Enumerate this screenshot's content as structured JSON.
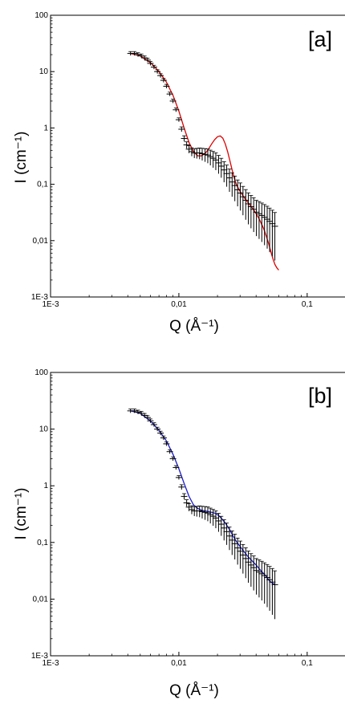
{
  "chart_data": [
    {
      "type": "scatter",
      "panel_label": "[a]",
      "xlabel": "Q (Å⁻¹)",
      "ylabel": "I (cm⁻¹)",
      "xscale": "log",
      "yscale": "log",
      "xlim": [
        0.001,
        0.2
      ],
      "ylim": [
        0.001,
        100
      ],
      "xticks": [
        0.001,
        0.01,
        0.1
      ],
      "xtick_labels": [
        "1E-3",
        "0,01",
        "0,1"
      ],
      "yticks": [
        0.001,
        0.01,
        0.1,
        1,
        10,
        100
      ],
      "ytick_labels": [
        "1E-3",
        "0,01",
        "0,1",
        "1",
        "10",
        "100"
      ],
      "grid": false,
      "series": [
        {
          "kind": "data",
          "style": "error-bar markers",
          "color": "#000000",
          "x": [
            0.0042,
            0.0045,
            0.0048,
            0.0051,
            0.0054,
            0.0057,
            0.006,
            0.0064,
            0.0068,
            0.0072,
            0.0076,
            0.008,
            0.0085,
            0.009,
            0.0095,
            0.01,
            0.0105,
            0.011,
            0.0115,
            0.012,
            0.0126,
            0.0132,
            0.0138,
            0.0145,
            0.0152,
            0.016,
            0.0168,
            0.0176,
            0.0185,
            0.0194,
            0.0204,
            0.0214,
            0.0225,
            0.0236,
            0.0248,
            0.026,
            0.0273,
            0.0287,
            0.0301,
            0.0316,
            0.0332,
            0.0348,
            0.0365,
            0.0383,
            0.0402,
            0.0422,
            0.0443,
            0.0465,
            0.0488,
            0.051,
            0.0535,
            0.056
          ],
          "y": [
            21,
            21,
            20,
            19,
            17.5,
            16,
            14,
            12,
            10,
            8.5,
            7,
            5.5,
            4,
            3,
            2.1,
            1.4,
            0.95,
            0.65,
            0.5,
            0.42,
            0.38,
            0.36,
            0.36,
            0.36,
            0.35,
            0.34,
            0.33,
            0.31,
            0.29,
            0.27,
            0.24,
            0.21,
            0.18,
            0.155,
            0.13,
            0.11,
            0.095,
            0.08,
            0.07,
            0.06,
            0.052,
            0.045,
            0.04,
            0.036,
            0.032,
            0.03,
            0.028,
            0.026,
            0.024,
            0.022,
            0.02,
            0.018
          ]
        },
        {
          "kind": "fit",
          "color": "#dd0000",
          "x": [
            0.0042,
            0.005,
            0.006,
            0.007,
            0.008,
            0.009,
            0.01,
            0.011,
            0.012,
            0.013,
            0.014,
            0.015,
            0.016,
            0.017,
            0.018,
            0.019,
            0.02,
            0.021,
            0.022,
            0.023,
            0.024,
            0.025,
            0.026,
            0.027,
            0.028,
            0.03,
            0.032,
            0.034,
            0.036,
            0.038,
            0.04,
            0.042,
            0.044,
            0.046,
            0.048,
            0.05,
            0.052,
            0.054,
            0.056,
            0.058,
            0.06
          ],
          "y": [
            21,
            19,
            14.5,
            10,
            6.5,
            3.8,
            2,
            1,
            0.55,
            0.38,
            0.32,
            0.32,
            0.35,
            0.42,
            0.52,
            0.62,
            0.7,
            0.72,
            0.66,
            0.52,
            0.38,
            0.26,
            0.18,
            0.13,
            0.1,
            0.075,
            0.06,
            0.05,
            0.042,
            0.036,
            0.03,
            0.025,
            0.02,
            0.016,
            0.012,
            0.009,
            0.0065,
            0.0048,
            0.0038,
            0.0033,
            0.003
          ]
        }
      ]
    },
    {
      "type": "scatter",
      "panel_label": "[b]",
      "xlabel": "Q (Å⁻¹)",
      "ylabel": "I (cm⁻¹)",
      "xscale": "log",
      "yscale": "log",
      "xlim": [
        0.001,
        0.2
      ],
      "ylim": [
        0.001,
        100
      ],
      "xticks": [
        0.001,
        0.01,
        0.1
      ],
      "xtick_labels": [
        "1E-3",
        "0,01",
        "0,1"
      ],
      "yticks": [
        0.001,
        0.01,
        0.1,
        1,
        10,
        100
      ],
      "ytick_labels": [
        "1E-3",
        "0,01",
        "0,1",
        "1",
        "10",
        "100"
      ],
      "grid": false,
      "series": [
        {
          "kind": "data",
          "style": "error-bar markers",
          "color": "#000000",
          "x": [
            0.0042,
            0.0045,
            0.0048,
            0.0051,
            0.0054,
            0.0057,
            0.006,
            0.0064,
            0.0068,
            0.0072,
            0.0076,
            0.008,
            0.0085,
            0.009,
            0.0095,
            0.01,
            0.0105,
            0.011,
            0.0115,
            0.012,
            0.0126,
            0.0132,
            0.0138,
            0.0145,
            0.0152,
            0.016,
            0.0168,
            0.0176,
            0.0185,
            0.0194,
            0.0204,
            0.0214,
            0.0225,
            0.0236,
            0.0248,
            0.026,
            0.0273,
            0.0287,
            0.0301,
            0.0316,
            0.0332,
            0.0348,
            0.0365,
            0.0383,
            0.0402,
            0.0422,
            0.0443,
            0.0465,
            0.0488,
            0.051,
            0.0535,
            0.056
          ],
          "y": [
            21,
            21,
            20,
            19,
            17.5,
            16,
            14,
            12,
            10,
            8.5,
            7,
            5.5,
            4,
            3,
            2.1,
            1.4,
            0.95,
            0.65,
            0.5,
            0.42,
            0.38,
            0.36,
            0.36,
            0.36,
            0.35,
            0.34,
            0.33,
            0.31,
            0.29,
            0.27,
            0.24,
            0.21,
            0.18,
            0.155,
            0.13,
            0.11,
            0.095,
            0.08,
            0.07,
            0.06,
            0.052,
            0.045,
            0.04,
            0.036,
            0.032,
            0.03,
            0.028,
            0.026,
            0.024,
            0.022,
            0.02,
            0.018
          ]
        },
        {
          "kind": "fit",
          "color": "#1a1acc",
          "x": [
            0.0042,
            0.005,
            0.006,
            0.007,
            0.008,
            0.009,
            0.01,
            0.011,
            0.012,
            0.013,
            0.014,
            0.015,
            0.016,
            0.017,
            0.018,
            0.019,
            0.02,
            0.021,
            0.022,
            0.023,
            0.024,
            0.025,
            0.026,
            0.027,
            0.028,
            0.03,
            0.032,
            0.034,
            0.036,
            0.038,
            0.04,
            0.042,
            0.044,
            0.046,
            0.048,
            0.05,
            0.052,
            0.054,
            0.056
          ],
          "y": [
            21,
            19,
            14,
            9.5,
            6.2,
            3.6,
            2,
            1.1,
            0.65,
            0.46,
            0.4,
            0.37,
            0.36,
            0.35,
            0.34,
            0.33,
            0.31,
            0.28,
            0.25,
            0.22,
            0.19,
            0.165,
            0.14,
            0.12,
            0.105,
            0.085,
            0.07,
            0.059,
            0.051,
            0.045,
            0.04,
            0.035,
            0.031,
            0.028,
            0.025,
            0.022,
            0.02,
            0.019,
            0.018
          ]
        }
      ]
    }
  ]
}
